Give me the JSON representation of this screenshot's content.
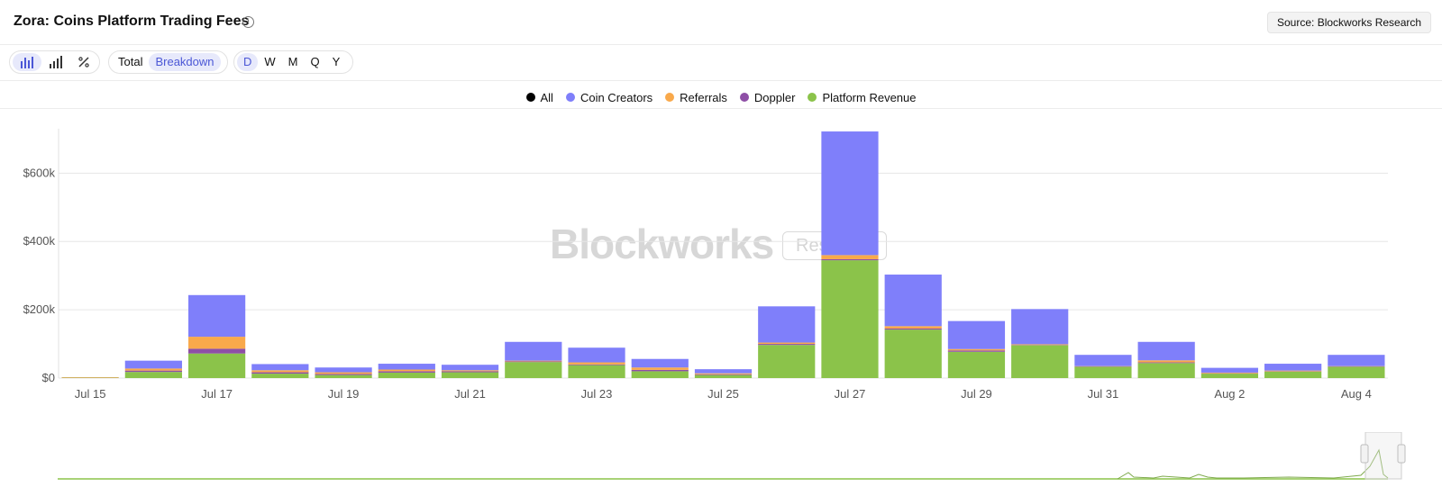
{
  "header": {
    "title": "Zora: Coins Platform Trading Fees",
    "info_icon": "info-icon",
    "source": "Source: Blockworks Research"
  },
  "toolbar": {
    "chart_type_icons": [
      "bar-chart-icon",
      "column-chart-icon",
      "percent-icon"
    ],
    "modes": [
      "Total",
      "Breakdown"
    ],
    "active_mode": "Breakdown",
    "intervals": [
      "D",
      "W",
      "M",
      "Q",
      "Y"
    ],
    "active_interval": "D"
  },
  "watermark": {
    "brand": "Blockworks",
    "tag": "Research"
  },
  "colors": {
    "all": "#000000",
    "coin_creators": "#7f7ffa",
    "referrals": "#f9a94b",
    "doppler": "#8e4fa6",
    "platform_revenue": "#8bc34a",
    "accent": "#4b57d6"
  },
  "chart_data": {
    "type": "bar",
    "stacked": true,
    "legend": [
      "All",
      "Coin Creators",
      "Referrals",
      "Doppler",
      "Platform Revenue"
    ],
    "legend_placement": "top-center",
    "categories": [
      "Jul 15",
      "Jul 16",
      "Jul 17",
      "Jul 18",
      "Jul 19",
      "Jul 20",
      "Jul 21",
      "Jul 22",
      "Jul 23",
      "Jul 24",
      "Jul 25",
      "Jul 26",
      "Jul 27",
      "Jul 28",
      "Jul 29",
      "Jul 30",
      "Jul 31",
      "Aug 1",
      "Aug 2",
      "Aug 3",
      "Aug 4"
    ],
    "x_tick_labels": [
      "Jul 15",
      "Jul 17",
      "Jul 19",
      "Jul 21",
      "Jul 23",
      "Jul 25",
      "Jul 27",
      "Jul 29",
      "Jul 31",
      "Aug 2",
      "Aug 4"
    ],
    "y_tick_labels": [
      "$0",
      "$200k",
      "$400k",
      "$600k"
    ],
    "y_ticks": [
      0,
      200000,
      400000,
      600000
    ],
    "ylim": [
      0,
      730000
    ],
    "grid": true,
    "series": [
      {
        "name": "Platform Revenue",
        "color": "#8bc34a",
        "values": [
          1000,
          18000,
          72000,
          13000,
          9000,
          16000,
          17000,
          47000,
          38000,
          20000,
          9000,
          97000,
          345000,
          142000,
          77000,
          96000,
          33000,
          44000,
          13000,
          19000,
          33000
        ]
      },
      {
        "name": "Doppler",
        "color": "#8e4fa6",
        "values": [
          200,
          4000,
          14000,
          4000,
          3000,
          4000,
          3000,
          2000,
          2000,
          4000,
          2000,
          3000,
          3000,
          3000,
          4000,
          1000,
          1000,
          2000,
          1000,
          1000,
          1000
        ]
      },
      {
        "name": "Referrals",
        "color": "#f9a94b",
        "values": [
          1500,
          6000,
          35000,
          6000,
          5000,
          5000,
          3000,
          2000,
          6000,
          7000,
          3000,
          4000,
          12000,
          7000,
          4000,
          2000,
          1000,
          6000,
          2000,
          2000,
          1000
        ]
      },
      {
        "name": "Coin Creators",
        "color": "#7f7ffa",
        "values": [
          0,
          23000,
          122000,
          18000,
          14000,
          17000,
          16000,
          55000,
          43000,
          25000,
          12000,
          106000,
          362000,
          151000,
          82000,
          103000,
          33000,
          54000,
          14000,
          20000,
          33000
        ]
      }
    ]
  }
}
